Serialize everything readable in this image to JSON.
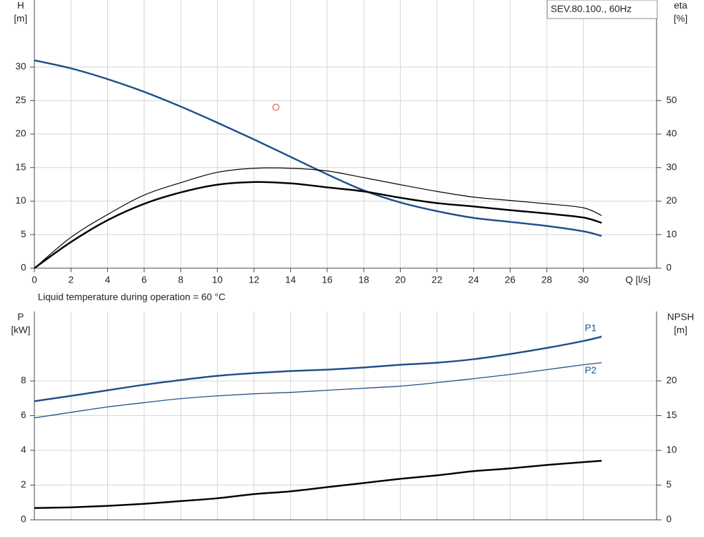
{
  "chart_data": [
    {
      "type": "line",
      "y_label": "H",
      "y_unit": "[m]",
      "y2_label": "eta",
      "y2_unit": "[%]",
      "x_label": "Q [l/s]",
      "info_box": "SEV.80.100., 60Hz",
      "note": "Liquid temperature during operation = 60 °C",
      "x": [
        0,
        2,
        4,
        6,
        8,
        10,
        12,
        14,
        16,
        18,
        20,
        22,
        24,
        26,
        28,
        30,
        31
      ],
      "xlim": [
        0,
        34
      ],
      "xticks": [
        0,
        2,
        4,
        6,
        8,
        10,
        12,
        14,
        16,
        18,
        20,
        22,
        24,
        26,
        28,
        30
      ],
      "x_tick_labels": true,
      "ylim": [
        0,
        40
      ],
      "yticks": [
        0,
        5,
        10,
        15,
        20,
        25,
        30
      ],
      "y2lim": [
        0,
        80
      ],
      "y2ticks": [
        0,
        10,
        20,
        30,
        40,
        50
      ],
      "grid": true,
      "series": [
        {
          "color": "#1f4f8a",
          "width": 2.5,
          "values": [
            31,
            29.8,
            28.2,
            26.3,
            24.1,
            21.7,
            19.2,
            16.6,
            14.0,
            11.6,
            9.8,
            8.5,
            7.5,
            6.9,
            6.3,
            5.5,
            4.8
          ]
        },
        {
          "color": "#000000",
          "width": 1.2,
          "axis": "y2",
          "values": [
            0,
            9.2,
            16,
            21.8,
            25.5,
            28.6,
            29.8,
            29.8,
            29,
            27,
            24.9,
            22.9,
            21.2,
            20.2,
            19.2,
            18,
            15.7
          ]
        },
        {
          "color": "#000000",
          "width": 2.5,
          "axis": "y2",
          "values": [
            0,
            7.8,
            14.3,
            19.2,
            22.6,
            24.9,
            25.7,
            25.3,
            24.1,
            22.9,
            21,
            19.4,
            18.4,
            17.3,
            16.3,
            15.1,
            13.5
          ]
        }
      ],
      "markers": [
        {
          "x": 13.2,
          "y": 24,
          "color": "#e03030"
        }
      ]
    },
    {
      "type": "line",
      "y_label": "P",
      "y_unit": "[kW]",
      "y2_label": "NPSH",
      "y2_unit": "[m]",
      "x": [
        0,
        2,
        4,
        6,
        8,
        10,
        12,
        14,
        16,
        18,
        20,
        22,
        24,
        26,
        28,
        30,
        31
      ],
      "xlim": [
        0,
        34
      ],
      "xticks": [
        0,
        2,
        4,
        6,
        8,
        10,
        12,
        14,
        16,
        18,
        20,
        22,
        24,
        26,
        28,
        30
      ],
      "x_tick_labels": false,
      "ylim": [
        0,
        12
      ],
      "yticks": [
        0,
        2,
        4,
        6,
        8
      ],
      "y2lim": [
        0,
        30
      ],
      "y2ticks": [
        0,
        5,
        10,
        15,
        20
      ],
      "grid": true,
      "series": [
        {
          "name": "P1",
          "label_position": "above",
          "color": "#1f4f8a",
          "width": 2.5,
          "values": [
            6.83,
            7.14,
            7.46,
            7.78,
            8.05,
            8.29,
            8.45,
            8.57,
            8.65,
            8.77,
            8.93,
            9.05,
            9.25,
            9.55,
            9.9,
            10.3,
            10.55
          ]
        },
        {
          "name": "P2",
          "label_position": "below",
          "color": "#1f4f8a",
          "width": 1.3,
          "values": [
            5.87,
            6.19,
            6.5,
            6.75,
            6.98,
            7.14,
            7.26,
            7.34,
            7.46,
            7.58,
            7.7,
            7.9,
            8.13,
            8.37,
            8.65,
            8.93,
            9.05
          ]
        },
        {
          "color": "#000000",
          "width": 2.5,
          "axis": "y2",
          "values": [
            1.7,
            1.8,
            2.0,
            2.3,
            2.7,
            3.1,
            3.7,
            4.1,
            4.7,
            5.3,
            5.9,
            6.4,
            7.0,
            7.4,
            7.9,
            8.3,
            8.5
          ]
        }
      ]
    }
  ]
}
